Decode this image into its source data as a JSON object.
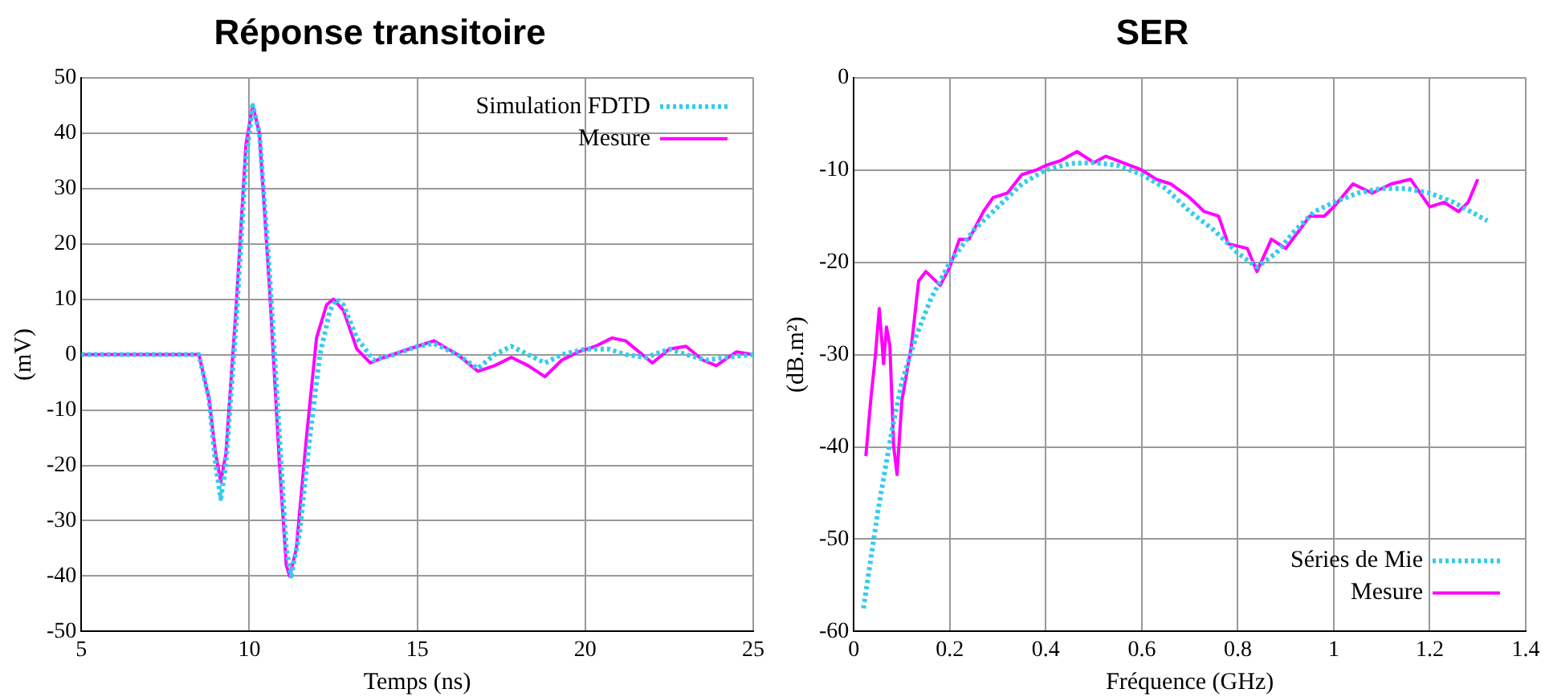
{
  "chart_data": [
    {
      "type": "line",
      "title": "Réponse transitoire",
      "xlabel": "Temps (ns)",
      "ylabel": "(mV)",
      "xlim": [
        5,
        25
      ],
      "xticks": [
        5,
        10,
        15,
        20,
        25
      ],
      "ylim": [
        -50,
        50
      ],
      "yticks": [
        -50,
        -40,
        -30,
        -20,
        -10,
        0,
        10,
        20,
        30,
        40,
        50
      ],
      "grid": true,
      "legend": "top right",
      "marker": "none",
      "series": [
        {
          "name": "Simulation FDTD",
          "color": "#33ccee",
          "line_style": "dotted",
          "x": [
            5,
            8.5,
            8.8,
            9.0,
            9.15,
            9.3,
            9.6,
            9.9,
            10.1,
            10.3,
            10.6,
            10.9,
            11.1,
            11.25,
            11.5,
            11.8,
            12.1,
            12.4,
            12.6,
            12.8,
            13.2,
            13.7,
            14.3,
            15,
            15.5,
            16.2,
            16.8,
            17.3,
            17.8,
            18.3,
            18.8,
            19.3,
            20,
            20.7,
            21.2,
            21.8,
            22.5,
            23,
            23.6,
            24.2,
            25
          ],
          "values": [
            0,
            0,
            -8,
            -20,
            -26,
            -20,
            5,
            35,
            45,
            40,
            15,
            -15,
            -35,
            -40,
            -32,
            -15,
            0,
            8,
            10,
            9,
            3,
            -1,
            0,
            1.5,
            2,
            0,
            -2.5,
            0,
            1.5,
            0,
            -1.5,
            0,
            1,
            1,
            0,
            -0.5,
            1,
            0,
            -1,
            -0.5,
            0
          ]
        },
        {
          "name": "Mesure",
          "color": "#ff00ff",
          "line_style": "solid",
          "x": [
            5,
            8.5,
            8.8,
            9.0,
            9.15,
            9.3,
            9.6,
            9.9,
            10.1,
            10.3,
            10.6,
            10.9,
            11.1,
            11.2,
            11.4,
            11.7,
            12.0,
            12.3,
            12.5,
            12.8,
            13.2,
            13.6,
            14,
            14.5,
            15,
            15.5,
            16.2,
            16.8,
            17.3,
            17.8,
            18.3,
            18.8,
            19.3,
            19.8,
            20.3,
            20.8,
            21.2,
            21.7,
            22,
            22.5,
            23,
            23.5,
            23.9,
            24.5,
            25
          ],
          "values": [
            0,
            0,
            -8,
            -18,
            -23,
            -18,
            8,
            38,
            45,
            40,
            12,
            -20,
            -38,
            -40,
            -35,
            -15,
            3,
            9,
            10,
            8,
            1,
            -1.5,
            -0.5,
            0.5,
            1.5,
            2.5,
            0,
            -3,
            -2,
            -0.5,
            -2,
            -4,
            -1,
            0.5,
            1.5,
            3,
            2.5,
            0,
            -1.5,
            1,
            1.5,
            -1,
            -2,
            0.5,
            0
          ]
        }
      ]
    },
    {
      "type": "line",
      "title": "SER",
      "xlabel": "Fréquence (GHz)",
      "ylabel": "(dB.m²)",
      "xlim": [
        0,
        1.4
      ],
      "xticks": [
        0,
        0.2,
        0.4,
        0.6,
        0.8,
        1,
        1.2,
        1.4
      ],
      "ylim": [
        -60,
        0
      ],
      "yticks": [
        -60,
        -50,
        -40,
        -30,
        -20,
        -10,
        0
      ],
      "grid": true,
      "legend": "bottom right",
      "marker": "none",
      "series": [
        {
          "name": "Séries de Mie",
          "color": "#33ccee",
          "line_style": "dotted",
          "x": [
            0.02,
            0.05,
            0.08,
            0.1,
            0.13,
            0.16,
            0.2,
            0.25,
            0.3,
            0.35,
            0.4,
            0.45,
            0.5,
            0.55,
            0.6,
            0.65,
            0.7,
            0.75,
            0.8,
            0.84,
            0.88,
            0.92,
            0.96,
            1.0,
            1.05,
            1.1,
            1.15,
            1.2,
            1.25,
            1.32
          ],
          "values": [
            -57.5,
            -47,
            -38,
            -33,
            -28,
            -24,
            -20,
            -16.5,
            -14,
            -11.5,
            -10,
            -9.3,
            -9.2,
            -9.5,
            -10.5,
            -12,
            -14.5,
            -16.5,
            -19,
            -20.5,
            -19,
            -16.5,
            -14.5,
            -13.5,
            -12.5,
            -12,
            -12,
            -12.5,
            -13.5,
            -15.5
          ]
        },
        {
          "name": "Mesure",
          "color": "#ff00ff",
          "line_style": "solid",
          "x": [
            0.025,
            0.035,
            0.045,
            0.053,
            0.062,
            0.068,
            0.075,
            0.083,
            0.09,
            0.1,
            0.12,
            0.135,
            0.15,
            0.17,
            0.18,
            0.2,
            0.22,
            0.24,
            0.27,
            0.29,
            0.32,
            0.35,
            0.38,
            0.4,
            0.43,
            0.465,
            0.5,
            0.525,
            0.55,
            0.6,
            0.63,
            0.66,
            0.7,
            0.73,
            0.76,
            0.78,
            0.82,
            0.84,
            0.87,
            0.9,
            0.95,
            0.98,
            1.0,
            1.04,
            1.08,
            1.12,
            1.16,
            1.2,
            1.23,
            1.26,
            1.28,
            1.3
          ],
          "values": [
            -41,
            -35,
            -30,
            -25,
            -31,
            -27,
            -29,
            -40,
            -43,
            -35,
            -29,
            -22,
            -21,
            -22,
            -22.5,
            -20.5,
            -17.5,
            -17.5,
            -14.5,
            -13,
            -12.5,
            -10.5,
            -10,
            -9.5,
            -9,
            -8,
            -9.2,
            -8.5,
            -9,
            -10,
            -11,
            -11.5,
            -13,
            -14.5,
            -15,
            -18,
            -18.5,
            -21,
            -17.5,
            -18.5,
            -15,
            -15,
            -14,
            -11.5,
            -12.5,
            -11.5,
            -11,
            -14,
            -13.5,
            -14.5,
            -13.5,
            -11
          ]
        }
      ]
    }
  ]
}
